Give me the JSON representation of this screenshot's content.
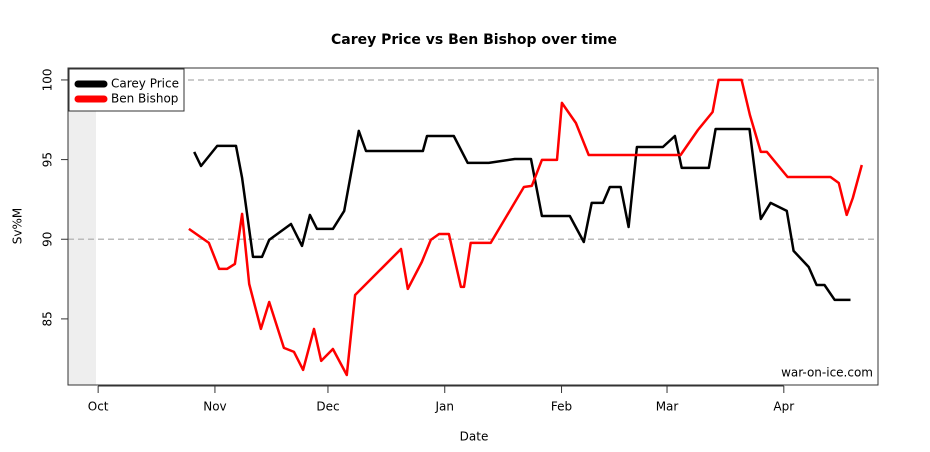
{
  "chart_data": {
    "type": "line",
    "title": "Carey Price vs Ben Bishop over time",
    "x_label": "Date",
    "y_label": "Sv%M",
    "annotation": "war-on-ice.com",
    "xlim": [
      -8,
      207
    ],
    "xticks": [
      {
        "value": 0,
        "label": "Oct"
      },
      {
        "value": 31,
        "label": "Nov"
      },
      {
        "value": 61,
        "label": "Dec"
      },
      {
        "value": 92,
        "label": "Jan"
      },
      {
        "value": 123,
        "label": "Feb"
      },
      {
        "value": 151,
        "label": "Mar"
      },
      {
        "value": 182,
        "label": "Apr"
      }
    ],
    "ylim": [
      80.85,
      100.75
    ],
    "yticks": [
      85,
      90,
      95,
      100
    ],
    "reference_lines": [
      90,
      100
    ],
    "legend": "top-left",
    "series": [
      {
        "name": "Carey Price",
        "color": "#000000",
        "x": [
          25.5,
          27.3,
          31.6,
          36.6,
          38.2,
          41.1,
          43.5,
          45.4,
          51.2,
          54.1,
          56.2,
          58.1,
          62.3,
          65.3,
          69.2,
          71.1,
          86.2,
          87.3,
          94.4,
          98.1,
          103.7,
          110.6,
          114.9,
          117.8,
          125.2,
          128.9,
          131.0,
          134.0,
          135.8,
          138.7,
          140.8,
          143.0,
          149.9,
          153.1,
          154.9,
          162.1,
          163.9,
          172.9,
          175.9,
          178.5,
          182.8,
          184.6,
          188.6,
          190.7,
          192.8,
          195.5,
          199.7
        ],
        "values": [
          95.48,
          94.6,
          95.86,
          95.86,
          93.85,
          88.89,
          88.89,
          89.96,
          90.96,
          89.58,
          91.53,
          90.65,
          90.65,
          91.78,
          96.8,
          95.54,
          95.54,
          96.48,
          96.48,
          94.79,
          94.79,
          95.04,
          95.04,
          91.46,
          91.46,
          89.83,
          92.28,
          92.28,
          93.28,
          93.28,
          90.77,
          95.79,
          95.79,
          96.48,
          94.48,
          94.48,
          96.92,
          96.92,
          91.27,
          92.28,
          91.78,
          89.27,
          88.26,
          87.13,
          87.13,
          86.19,
          86.19
        ]
      },
      {
        "name": "Ben Bishop",
        "color": "#ff0000",
        "x": [
          24.1,
          29.4,
          32.1,
          34.2,
          36.3,
          38.2,
          40.1,
          43.2,
          45.4,
          49.3,
          52.0,
          54.4,
          57.3,
          59.2,
          62.3,
          66.0,
          68.2,
          80.4,
          82.2,
          85.9,
          88.3,
          90.5,
          93.1,
          96.3,
          97.1,
          98.9,
          104.2,
          113.0,
          115.1,
          117.8,
          121.8,
          123.1,
          126.8,
          130.2,
          154.6,
          159.2,
          163.1,
          164.7,
          170.8,
          173.0,
          175.9,
          177.5,
          183.0,
          194.4,
          196.6,
          198.7,
          200.3,
          202.7
        ],
        "values": [
          90.65,
          89.77,
          88.14,
          88.14,
          88.45,
          91.59,
          87.19,
          84.37,
          86.06,
          83.18,
          82.93,
          81.8,
          84.37,
          82.36,
          83.11,
          81.48,
          86.5,
          89.39,
          86.88,
          88.57,
          89.96,
          90.33,
          90.33,
          87.01,
          87.01,
          89.77,
          89.77,
          93.28,
          93.35,
          94.98,
          94.98,
          98.56,
          97.3,
          95.29,
          95.29,
          96.86,
          97.99,
          100,
          100,
          97.8,
          95.48,
          95.48,
          93.91,
          93.91,
          93.53,
          91.53,
          92.59,
          94.66
        ]
      }
    ]
  }
}
